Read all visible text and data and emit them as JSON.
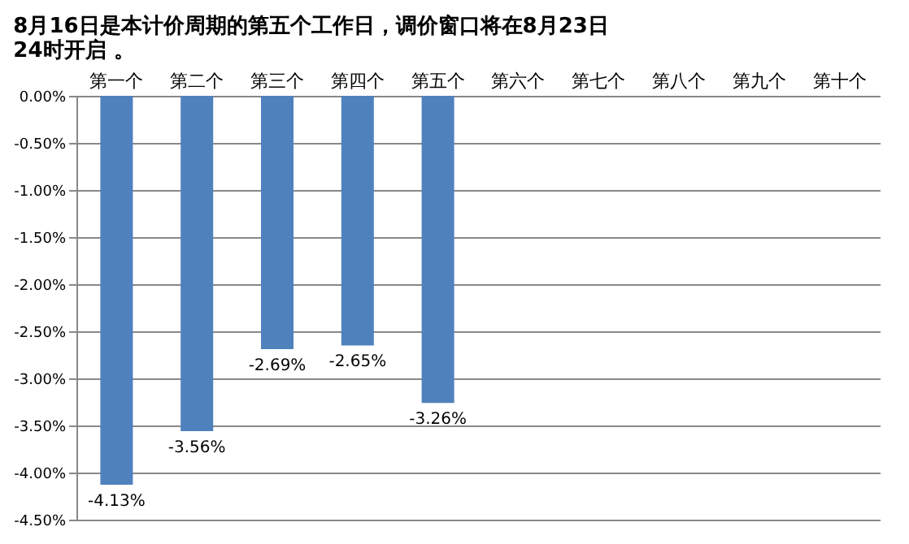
{
  "chart_data": {
    "type": "bar",
    "title": "8月16日是本计价周期的第五个工作日，调价窗口将在8月23日24时开启 。",
    "categories": [
      "第一个",
      "第二个",
      "第三个",
      "第四个",
      "第五个",
      "第六个",
      "第七个",
      "第八个",
      "第九个",
      "第十个"
    ],
    "values": [
      -4.13,
      -3.56,
      -2.69,
      -2.65,
      -3.26,
      null,
      null,
      null,
      null,
      null
    ],
    "value_labels": [
      "-4.13%",
      "-3.56%",
      "-2.69%",
      "-2.65%",
      "-3.26%",
      null,
      null,
      null,
      null,
      null
    ],
    "color": "#4f81bd",
    "ylim": [
      -4.5,
      0
    ],
    "yticks": [
      {
        "value": 0,
        "label": "0.00%"
      },
      {
        "value": -0.5,
        "label": "-0.50%"
      },
      {
        "value": -1,
        "label": "-1.00%"
      },
      {
        "value": -1.5,
        "label": "-1.50%"
      },
      {
        "value": -2,
        "label": "-2.00%"
      },
      {
        "value": -2.5,
        "label": "-2.50%"
      },
      {
        "value": -3,
        "label": "-3.00%"
      },
      {
        "value": -3.5,
        "label": "-3.50%"
      },
      {
        "value": -4,
        "label": "-4.00%"
      },
      {
        "value": -4.5,
        "label": "-4.50%"
      }
    ],
    "grid": "y"
  }
}
